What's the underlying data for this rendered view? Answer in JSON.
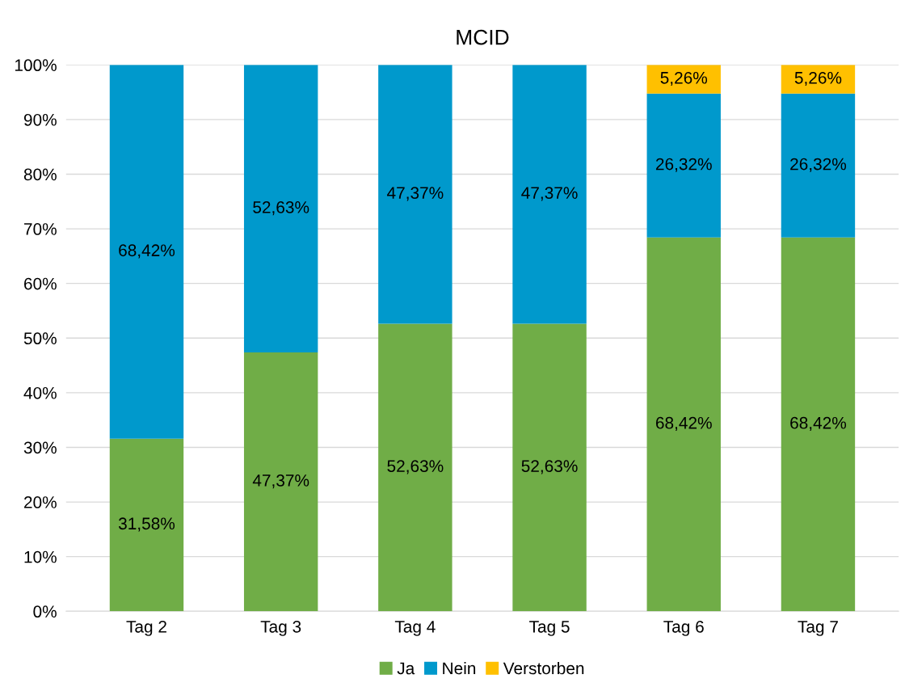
{
  "chart_data": {
    "type": "bar",
    "title": "MCID",
    "stacked": true,
    "categories": [
      "Tag 2",
      "Tag 3",
      "Tag 4",
      "Tag 5",
      "Tag 6",
      "Tag 7"
    ],
    "series": [
      {
        "name": "Ja",
        "color": "#70ad47",
        "values": [
          31.58,
          47.37,
          52.63,
          52.63,
          68.42,
          68.42
        ],
        "value_labels": [
          "31,58%",
          "47,37%",
          "52,63%",
          "52,63%",
          "68,42%",
          "68,42%"
        ]
      },
      {
        "name": "Nein",
        "color": "#0099cc",
        "values": [
          68.42,
          52.63,
          47.37,
          47.37,
          26.32,
          26.32
        ],
        "value_labels": [
          "68,42%",
          "52,63%",
          "47,37%",
          "47,37%",
          "26,32%",
          "26,32%"
        ]
      },
      {
        "name": "Verstorben",
        "color": "#ffc000",
        "values": [
          0,
          0,
          0,
          0,
          5.26,
          5.26
        ],
        "value_labels": [
          null,
          null,
          null,
          null,
          "5,26%",
          "5,26%"
        ]
      }
    ],
    "ylim": [
      0,
      100
    ],
    "yticks": [
      {
        "value": 0,
        "label": "0%"
      },
      {
        "value": 10,
        "label": "10%"
      },
      {
        "value": 20,
        "label": "20%"
      },
      {
        "value": 30,
        "label": "30%"
      },
      {
        "value": 40,
        "label": "40%"
      },
      {
        "value": 50,
        "label": "50%"
      },
      {
        "value": 60,
        "label": "60%"
      },
      {
        "value": 70,
        "label": "70%"
      },
      {
        "value": 80,
        "label": "80%"
      },
      {
        "value": 90,
        "label": "90%"
      },
      {
        "value": 100,
        "label": "100%"
      }
    ],
    "grid": "y",
    "legend": "bottom"
  }
}
